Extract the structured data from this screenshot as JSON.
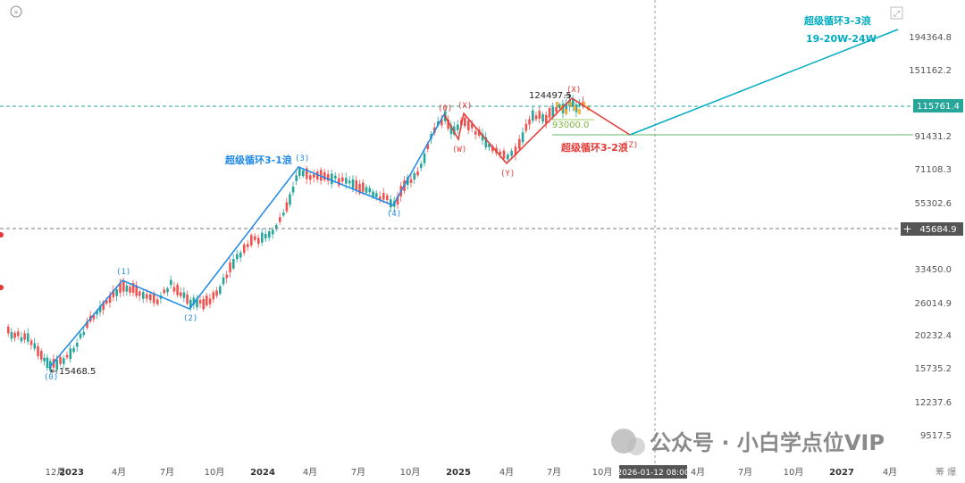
{
  "chart_data": {
    "type": "candlestick",
    "x_ticks": [
      "12月",
      "2023",
      "4月",
      "7月",
      "10月",
      "2024",
      "4月",
      "7月",
      "10月",
      "2025",
      "4月",
      "7月",
      "10月",
      "4月",
      "7月",
      "10月",
      "2027",
      "4月"
    ],
    "x_cursor_label": "2026-01-12 08:00",
    "y_ticks": [
      "194364.8",
      "151162.2",
      "91431.2",
      "71108.3",
      "55302.6",
      "33450.0",
      "26014.9",
      "20232.4",
      "15735.2",
      "12237.6",
      "9517.5"
    ],
    "y_highlight_labels": [
      {
        "value": "115761.4",
        "color": "#26a69a"
      },
      {
        "value": "45684.9",
        "color": "#555555"
      }
    ],
    "y_scale": "log",
    "price_markers": [
      {
        "label": "15468.5",
        "value": 15468.5
      },
      {
        "label": "124497.5",
        "value": 124497.5
      },
      {
        "label": "93000.0",
        "value": 93000.0
      }
    ],
    "blue_wave_labels": [
      "(0)",
      "(1)",
      "(2)",
      "(3)",
      "(4)"
    ],
    "red_wave_labels": [
      "(0)",
      "(X)",
      "(W)",
      "(Y)",
      "(X)",
      "(Z)"
    ],
    "annotations": {
      "wave1": "超级循环3-1浪",
      "wave2": "超级循环3-2浪",
      "wave3": "超级循环3-3浪",
      "wave3_time": "19-20W-24W"
    }
  },
  "watermark": "公众号 · 小白学点位VIP",
  "colors": {
    "up": "#26a69a",
    "down": "#ef5350",
    "wave_blue": "#1e88e5",
    "wave_red": "#e53935",
    "projection_teal": "#00acc1",
    "support_green": "#66bb6a"
  },
  "icons": {
    "top_left": "forward-circle-icon",
    "top_right": "expand-icon",
    "crosshair_plus": "plus-icon"
  },
  "corner_text": "筹 爆"
}
